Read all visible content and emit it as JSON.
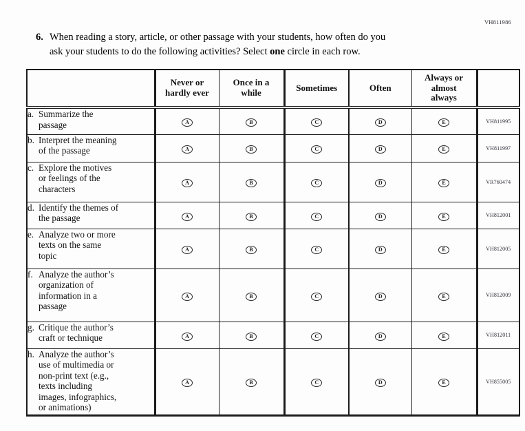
{
  "page": {
    "admin_code": "VH811986"
  },
  "question": {
    "number": "6.",
    "text_before_bold": "When reading a story, article, or other passage with your students, how often do you\nask your students to do the following activities? Select",
    "bold_word": "one",
    "text_after_bold": "circle in each row."
  },
  "table": {
    "column_headers": [
      "Never or\nhardly ever",
      "Once in a\nwhile",
      "Sometimes",
      "Often",
      "Always or\nalmost\nalways"
    ],
    "option_letters": [
      "A",
      "B",
      "C",
      "D",
      "E"
    ],
    "rows": [
      {
        "letter": "a.",
        "text": "Summarize the\npassage",
        "code": "VH811995"
      },
      {
        "letter": "b.",
        "text": "Interpret the meaning\nof the passage",
        "code": "VH811997"
      },
      {
        "letter": "c.",
        "text": "Explore the motives\nor feelings of the\ncharacters",
        "code": "VR760474"
      },
      {
        "letter": "d.",
        "text": "Identify the themes of\nthe passage",
        "code": "VH812001"
      },
      {
        "letter": "e.",
        "text": "Analyze two or more\ntexts on the same\ntopic",
        "code": "VH812005"
      },
      {
        "letter": "f.",
        "text": "Analyze the author’s\norganization of\ninformation in a\npassage",
        "code": "VH812009"
      },
      {
        "letter": "g.",
        "text": "Critique the author’s\ncraft or technique",
        "code": "VH812011"
      },
      {
        "letter": "h.",
        "text": "Analyze the author’s\nuse of multimedia or\nnon-print text (e.g.,\ntexts including\nimages, infographics,\nor animations)",
        "code": "VH855005"
      }
    ]
  },
  "colors": {
    "ink": "#1c1c1c",
    "page_bg": "#fdfdfd"
  }
}
